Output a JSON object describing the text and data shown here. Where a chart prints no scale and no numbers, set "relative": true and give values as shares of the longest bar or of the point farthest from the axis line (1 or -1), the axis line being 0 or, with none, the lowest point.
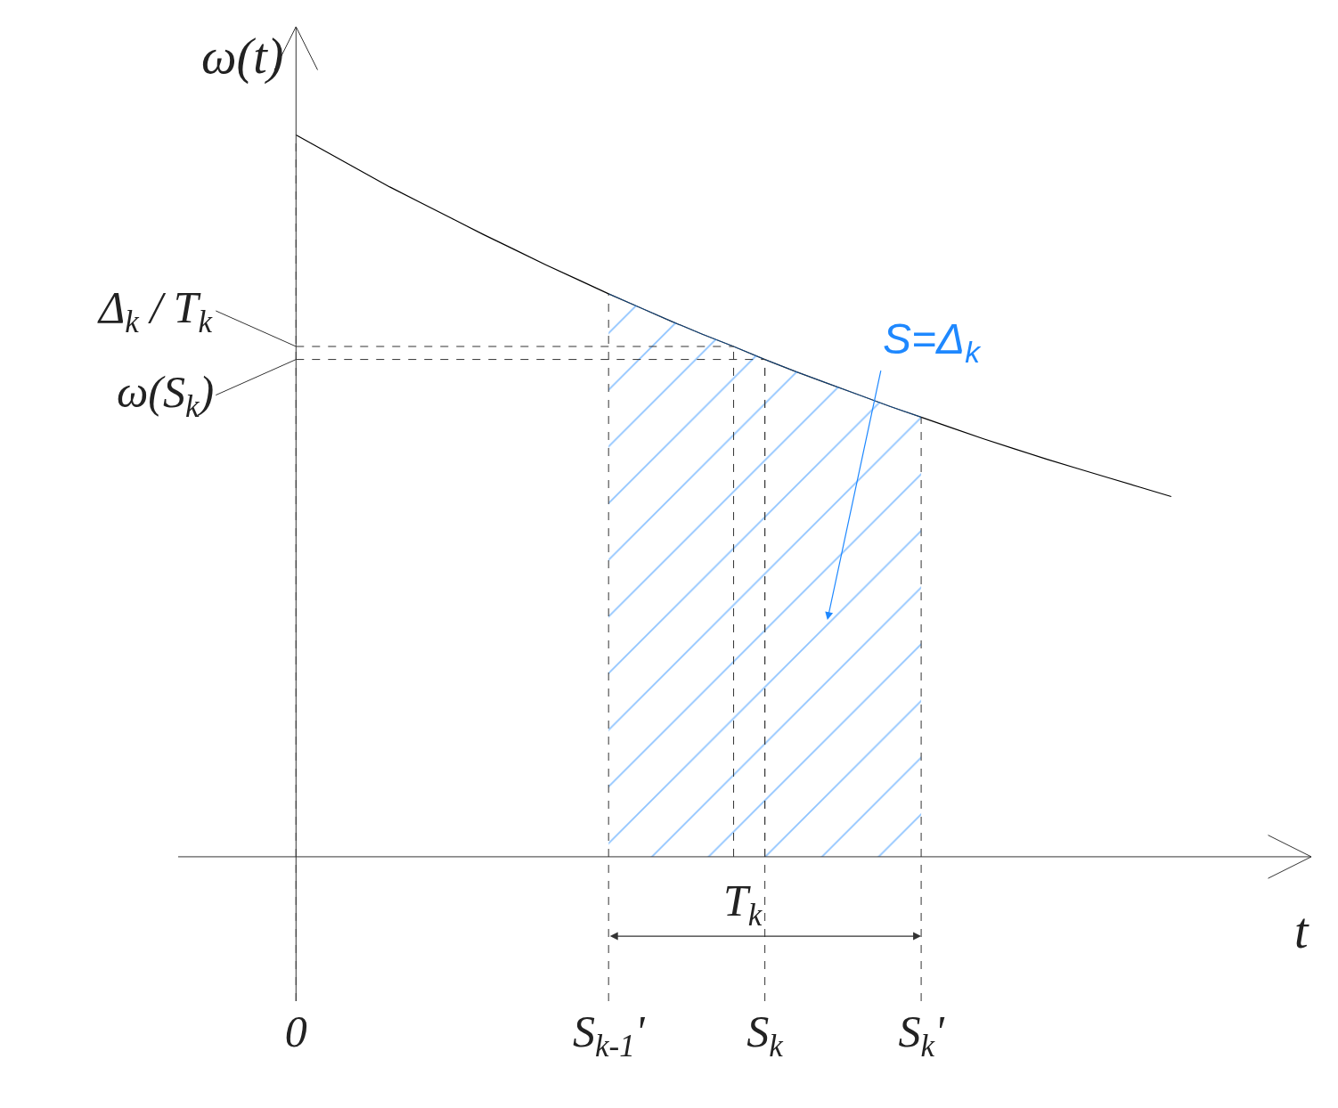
{
  "chart_data": {
    "type": "line",
    "relative": true,
    "ylabel": "ω(t)",
    "xlabel": "t",
    "grid": "x",
    "legend": false,
    "marker": "none",
    "categories": [
      "0",
      null,
      null,
      null,
      null,
      null,
      null,
      null,
      null,
      null,
      "S$_{k-1}$'",
      null,
      null,
      null,
      null,
      "S$_{k}$",
      null,
      null,
      null,
      null,
      "S$_{k}$'",
      null,
      null,
      null,
      null,
      null,
      null,
      null,
      null
    ],
    "series": [
      {
        "color": "#000000",
        "values": [
          1.0,
          0.976,
          0.952,
          0.928,
          0.906,
          0.884,
          0.862,
          0.841,
          0.82,
          0.8,
          0.78,
          0.761,
          0.742,
          0.724,
          0.707,
          0.689,
          0.672,
          0.656,
          0.64,
          0.624,
          0.609,
          0.594,
          0.579,
          0.565,
          0.551,
          0.538,
          0.525,
          0.512,
          0.499
        ]
      },
      {
        "type": "area",
        "name": "S=Δ$_{k}$",
        "color": "#1e88ff",
        "values": [
          null,
          null,
          null,
          null,
          null,
          null,
          null,
          null,
          null,
          null,
          0.78,
          0.761,
          0.742,
          0.724,
          0.707,
          0.689,
          0.672,
          0.656,
          0.64,
          0.624,
          0.609,
          null,
          null,
          null,
          null,
          null,
          null,
          null,
          null
        ]
      }
    ],
    "ref_lines": [
      {
        "axis": "y",
        "value": 0.707,
        "label": "Δ$_{k}$ / T$_{k}$",
        "line_style": "dashed"
      },
      {
        "axis": "y",
        "value": 0.689,
        "label": "ω(S$_{k}$)",
        "line_style": "dashed"
      }
    ],
    "annotations": [
      "T$_{k}$"
    ]
  }
}
